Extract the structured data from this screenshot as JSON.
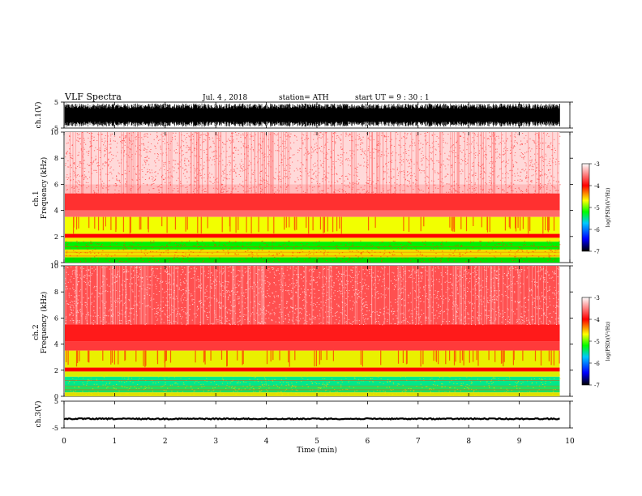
{
  "header": {
    "title": "VLF  Spectra",
    "date": "Jul.  4  , 2018",
    "station": "station= ATH",
    "start": "start  UT  =    9  : 30 : 1"
  },
  "chart_data": [
    {
      "type": "line",
      "name": "ch1-waveform",
      "ylabel": "ch.1(V)",
      "ylim": [
        -5,
        5
      ],
      "yticks": [
        "5",
        "-5"
      ],
      "xlim": [
        0,
        10
      ],
      "data_extent_min": 9.8,
      "amplitude_V": 4.5
    },
    {
      "type": "heatmap",
      "name": "ch1-spectrogram",
      "ylabel": "ch.1\nFrequency  (kHz)",
      "ylim": [
        0,
        10
      ],
      "yticks": [
        "0",
        "2",
        "4",
        "6",
        "8",
        "10"
      ],
      "xlim": [
        0,
        10
      ],
      "data_extent_min": 9.8,
      "colorbar": {
        "label": "log(PSD)(V²/Hz)",
        "range": [
          -7,
          -3
        ],
        "ticks": [
          "-3",
          "-4",
          "-5",
          "-6",
          "-7"
        ]
      }
    },
    {
      "type": "heatmap",
      "name": "ch2-spectrogram",
      "ylabel": "ch.2\nFrequency  (kHz)",
      "ylim": [
        0,
        10
      ],
      "yticks": [
        "0",
        "2",
        "4",
        "6",
        "8",
        "10"
      ],
      "xlim": [
        0,
        10
      ],
      "data_extent_min": 9.8,
      "colorbar": {
        "label": "log(PSD)(V²/Hz)",
        "range": [
          -7,
          -3
        ],
        "ticks": [
          "-3",
          "-4",
          "-5",
          "-6",
          "-7"
        ]
      }
    },
    {
      "type": "line",
      "name": "ch3-waveform",
      "ylabel": "ch.3(V)",
      "ylim": [
        -5,
        5
      ],
      "yticks": [
        "5",
        "-5"
      ],
      "xlim": [
        0,
        10
      ],
      "xticks": [
        "0",
        "1",
        "2",
        "3",
        "4",
        "5",
        "6",
        "7",
        "8",
        "9",
        "10"
      ],
      "xlabel": "Time  (min)",
      "data_extent_min": 9.8,
      "level_V": -1.6
    }
  ],
  "colors": {
    "waveform": "#000000",
    "colorbar_stops": [
      "#000000",
      "#0000ff",
      "#00c8ff",
      "#00ff00",
      "#ffff00",
      "#ff0000",
      "#ffffff"
    ]
  }
}
